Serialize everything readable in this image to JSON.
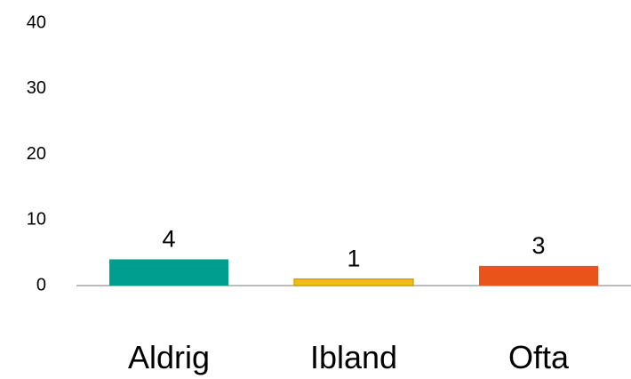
{
  "chart_data": {
    "type": "bar",
    "categories": [
      "Aldrig",
      "Ibland",
      "Ofta"
    ],
    "values": [
      4,
      1,
      3
    ],
    "colors": [
      "#009e8e",
      "#f2bb1d",
      "#e8541a"
    ],
    "ylim": [
      0,
      40
    ],
    "yticks": [
      "0",
      "10",
      "20",
      "30",
      "40"
    ],
    "data_labels": [
      "4",
      "1",
      "3"
    ],
    "title": "",
    "xlabel": "",
    "ylabel": "",
    "grid": false,
    "legend": "none"
  }
}
